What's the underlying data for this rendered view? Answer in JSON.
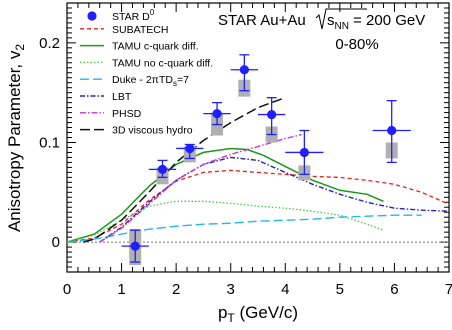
{
  "chart_data": {
    "type": "line",
    "title_left": "STAR Au+Au",
    "energy_prefix": "s",
    "energy_sub": "NN",
    "energy_value": " = 200 GeV",
    "centrality": "0-80%",
    "xlabel_main": "p",
    "xlabel_sub": "T",
    "xlabel_unit": " (GeV/c)",
    "ylabel_main": "Anisotropy Parameter, v",
    "ylabel_sub": "2",
    "xlim": [
      0,
      7
    ],
    "ylim": [
      -0.03,
      0.24
    ],
    "x_ticks": [
      "0",
      "1",
      "2",
      "3",
      "4",
      "5",
      "6",
      "7"
    ],
    "y_ticks": [
      "0",
      "0.1",
      "0.2"
    ],
    "zero_line": true,
    "data_series": {
      "name_main": "STAR D",
      "name_sup": "0",
      "color": "#1f1fff",
      "points": [
        {
          "x": 1.25,
          "y": -0.004,
          "stat_low": -0.02,
          "stat_high": 0.012,
          "sys_low": -0.023,
          "sys_high": 0.013,
          "xerr": 0.25
        },
        {
          "x": 1.75,
          "y": 0.073,
          "stat_low": 0.065,
          "stat_high": 0.082,
          "sys_low": 0.058,
          "sys_high": 0.075,
          "xerr": 0.25
        },
        {
          "x": 2.25,
          "y": 0.094,
          "stat_low": 0.084,
          "stat_high": 0.098,
          "sys_low": 0.08,
          "sys_high": 0.096,
          "xerr": 0.25
        },
        {
          "x": 2.75,
          "y": 0.129,
          "stat_low": 0.118,
          "stat_high": 0.14,
          "sys_low": 0.107,
          "sys_high": 0.13,
          "xerr": 0.25
        },
        {
          "x": 3.25,
          "y": 0.173,
          "stat_low": 0.152,
          "stat_high": 0.188,
          "sys_low": 0.146,
          "sys_high": 0.163,
          "xerr": 0.25
        },
        {
          "x": 3.75,
          "y": 0.128,
          "stat_low": 0.108,
          "stat_high": 0.145,
          "sys_low": 0.1,
          "sys_high": 0.116,
          "xerr": 0.25
        },
        {
          "x": 4.35,
          "y": 0.09,
          "stat_low": 0.068,
          "stat_high": 0.112,
          "sys_low": 0.062,
          "sys_high": 0.077,
          "xerr": 0.35
        },
        {
          "x": 5.95,
          "y": 0.112,
          "stat_low": 0.08,
          "stat_high": 0.142,
          "sys_low": 0.084,
          "sys_high": 0.1,
          "xerr": 0.35
        }
      ]
    },
    "series": [
      {
        "name": "SUBATECH",
        "color": "#ee1c1c",
        "dash": "4,3",
        "width": 1.3,
        "points": [
          [
            0,
            0
          ],
          [
            0.5,
            0.004
          ],
          [
            1,
            0.018
          ],
          [
            1.5,
            0.042
          ],
          [
            2,
            0.061
          ],
          [
            2.5,
            0.07
          ],
          [
            3,
            0.072
          ],
          [
            3.5,
            0.07
          ],
          [
            4,
            0.068
          ],
          [
            4.5,
            0.066
          ],
          [
            5,
            0.065
          ],
          [
            5.5,
            0.062
          ],
          [
            6,
            0.058
          ],
          [
            6.5,
            0.05
          ],
          [
            7,
            0.038
          ]
        ]
      },
      {
        "name": "TAMU c-quark diff.",
        "color": "#1a9a1a",
        "dash": "none",
        "width": 1.5,
        "points": [
          [
            0,
            0
          ],
          [
            0.5,
            0.008
          ],
          [
            1,
            0.028
          ],
          [
            1.5,
            0.056
          ],
          [
            2,
            0.078
          ],
          [
            2.5,
            0.09
          ],
          [
            3,
            0.094
          ],
          [
            3.3,
            0.093
          ],
          [
            3.6,
            0.087
          ],
          [
            4,
            0.076
          ],
          [
            4.5,
            0.062
          ],
          [
            5,
            0.052
          ],
          [
            5.5,
            0.048
          ],
          [
            5.8,
            0.041
          ]
        ]
      },
      {
        "name": "TAMU no c-quark diff.",
        "color": "#44cc44",
        "dash": "1.5,2",
        "width": 1.3,
        "points": [
          [
            0,
            0
          ],
          [
            0.5,
            0.007
          ],
          [
            1,
            0.022
          ],
          [
            1.5,
            0.036
          ],
          [
            2,
            0.041
          ],
          [
            2.5,
            0.041
          ],
          [
            3,
            0.039
          ],
          [
            3.5,
            0.036
          ],
          [
            4,
            0.034
          ],
          [
            4.5,
            0.031
          ],
          [
            5,
            0.027
          ],
          [
            5.5,
            0.018
          ],
          [
            5.8,
            0.012
          ]
        ]
      },
      {
        "name": "Duke - 2πTD_s=7",
        "color": "#22b8ee",
        "dash": "9,4",
        "width": 1.4,
        "points": [
          [
            0,
            0
          ],
          [
            0.5,
            0.003
          ],
          [
            1,
            0.008
          ],
          [
            1.5,
            0.013
          ],
          [
            2,
            0.016
          ],
          [
            2.5,
            0.018
          ],
          [
            3,
            0.019
          ],
          [
            3.5,
            0.021
          ],
          [
            4,
            0.022
          ],
          [
            4.5,
            0.023
          ],
          [
            5,
            0.025
          ],
          [
            5.5,
            0.026
          ],
          [
            6,
            0.027
          ],
          [
            6.5,
            0.027
          ]
        ]
      },
      {
        "name": "LBT",
        "color": "#2424b8",
        "dash": "5,2,1.5,2",
        "width": 1.4,
        "points": [
          [
            0.6,
            0
          ],
          [
            1,
            0.015
          ],
          [
            1.5,
            0.04
          ],
          [
            2,
            0.062
          ],
          [
            2.5,
            0.078
          ],
          [
            3,
            0.085
          ],
          [
            3.5,
            0.082
          ],
          [
            4,
            0.07
          ],
          [
            4.5,
            0.058
          ],
          [
            5,
            0.048
          ],
          [
            5.5,
            0.04
          ],
          [
            6,
            0.034
          ],
          [
            6.5,
            0.032
          ],
          [
            7,
            0.031
          ]
        ]
      },
      {
        "name": "PHSD",
        "color": "#cc33cc",
        "dash": "6,2,1.5,2",
        "width": 1.4,
        "points": [
          [
            0.6,
            0
          ],
          [
            1,
            0.014
          ],
          [
            1.5,
            0.038
          ],
          [
            2,
            0.062
          ],
          [
            2.5,
            0.078
          ],
          [
            3,
            0.088
          ],
          [
            3.5,
            0.096
          ],
          [
            4,
            0.104
          ],
          [
            4.3,
            0.108
          ]
        ]
      },
      {
        "name": "3D viscous hydro",
        "color": "#111111",
        "dash": "10,4",
        "width": 1.5,
        "points": [
          [
            0.3,
            0
          ],
          [
            0.5,
            0.003
          ],
          [
            1,
            0.022
          ],
          [
            1.5,
            0.05
          ],
          [
            2,
            0.08
          ],
          [
            2.5,
            0.102
          ],
          [
            3,
            0.12
          ],
          [
            3.5,
            0.135
          ],
          [
            4,
            0.145
          ]
        ]
      }
    ]
  }
}
